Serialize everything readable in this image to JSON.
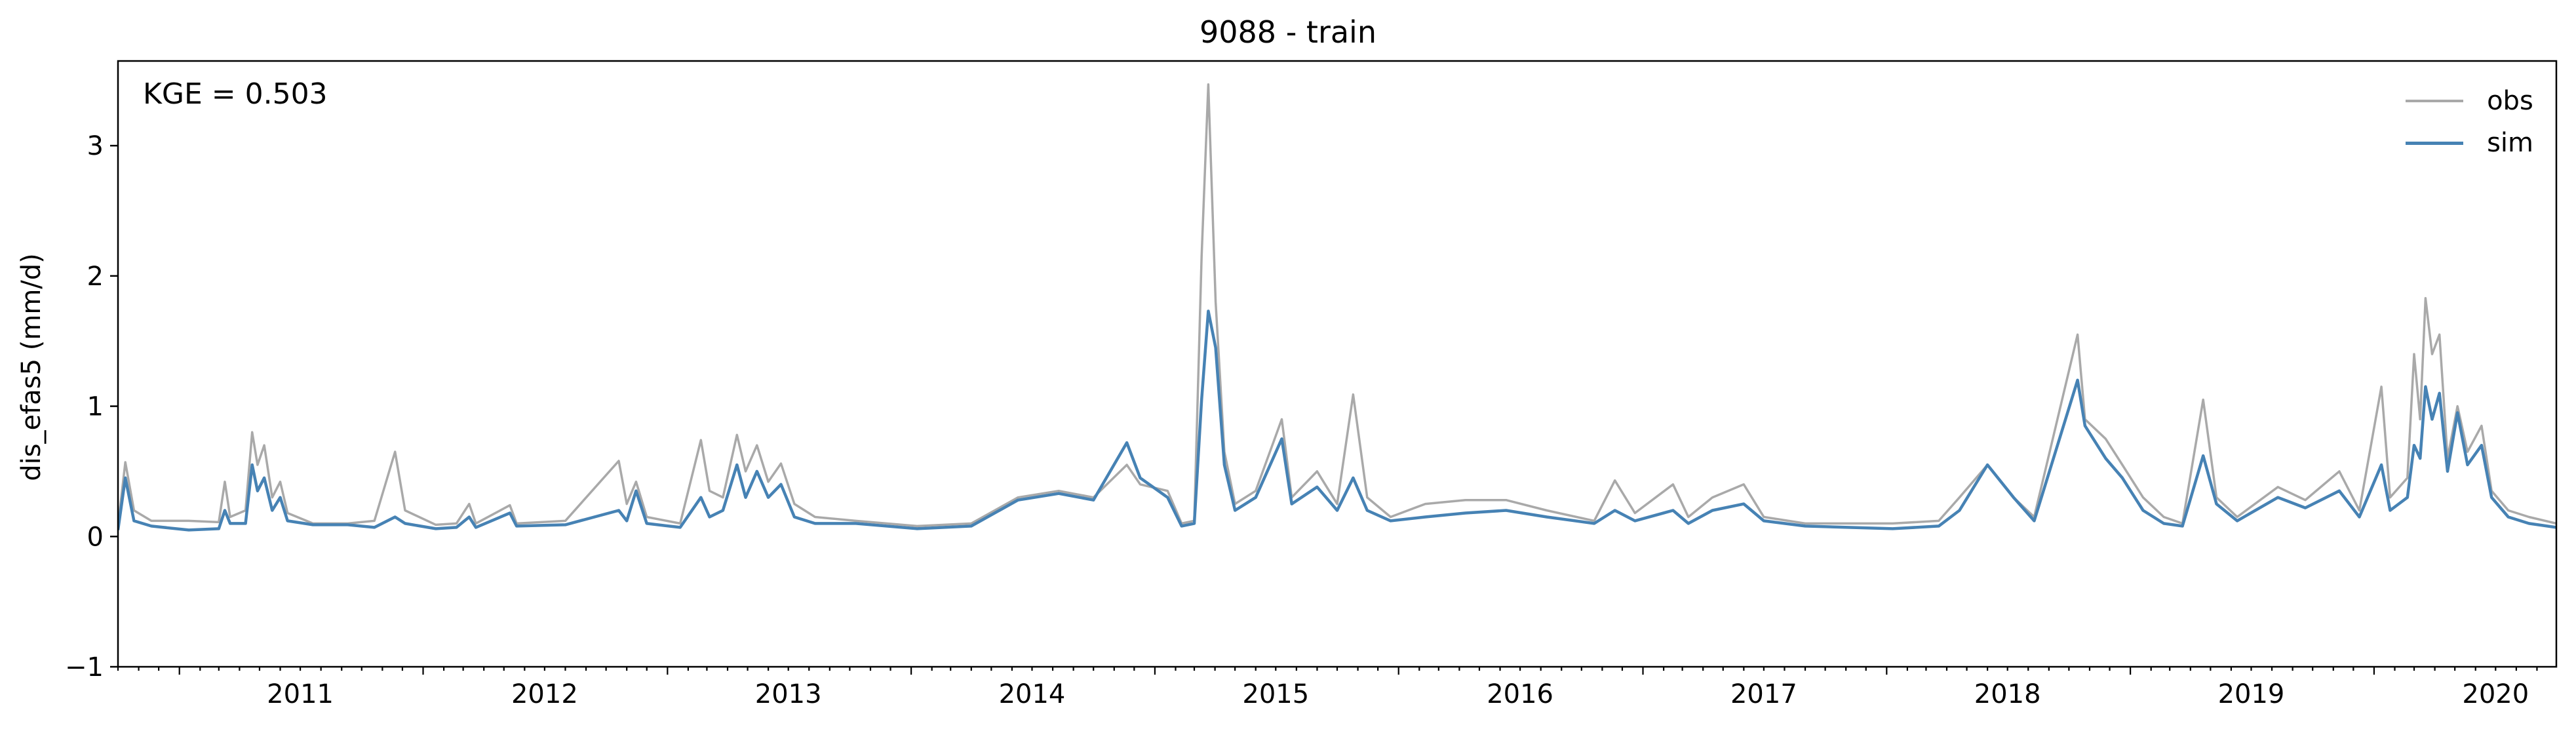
{
  "chart_data": {
    "type": "line",
    "title": "9088 - train",
    "ylabel": "dis_efas5 (mm/d)",
    "xlabel": "",
    "annotation": "KGE = 0.503",
    "x_range": [
      "2010-10-01",
      "2020-09-30"
    ],
    "ylim": [
      -1,
      3.65
    ],
    "yticks": [
      -1,
      0,
      1,
      2,
      3
    ],
    "xticks": [
      "2011",
      "2012",
      "2013",
      "2014",
      "2015",
      "2016",
      "2017",
      "2018",
      "2019",
      "2020"
    ],
    "grid": false,
    "legend_position": "top-right",
    "series": [
      {
        "name": "obs",
        "color": "#a9a9a9",
        "points": [
          [
            "2010-10-01",
            0.08
          ],
          [
            "2010-10-12",
            0.57
          ],
          [
            "2010-10-25",
            0.2
          ],
          [
            "2010-11-20",
            0.12
          ],
          [
            "2011-01-15",
            0.12
          ],
          [
            "2011-03-01",
            0.11
          ],
          [
            "2011-03-10",
            0.42
          ],
          [
            "2011-03-18",
            0.15
          ],
          [
            "2011-04-10",
            0.2
          ],
          [
            "2011-04-20",
            0.8
          ],
          [
            "2011-04-28",
            0.55
          ],
          [
            "2011-05-08",
            0.7
          ],
          [
            "2011-05-20",
            0.3
          ],
          [
            "2011-06-01",
            0.42
          ],
          [
            "2011-06-12",
            0.18
          ],
          [
            "2011-07-20",
            0.1
          ],
          [
            "2011-09-10",
            0.1
          ],
          [
            "2011-10-20",
            0.12
          ],
          [
            "2011-11-20",
            0.65
          ],
          [
            "2011-12-05",
            0.2
          ],
          [
            "2012-01-20",
            0.09
          ],
          [
            "2012-02-20",
            0.1
          ],
          [
            "2012-03-10",
            0.25
          ],
          [
            "2012-03-20",
            0.1
          ],
          [
            "2012-05-10",
            0.24
          ],
          [
            "2012-05-20",
            0.1
          ],
          [
            "2012-08-01",
            0.12
          ],
          [
            "2012-10-20",
            0.58
          ],
          [
            "2012-11-01",
            0.25
          ],
          [
            "2012-11-15",
            0.42
          ],
          [
            "2012-12-01",
            0.15
          ],
          [
            "2013-01-20",
            0.1
          ],
          [
            "2013-02-20",
            0.74
          ],
          [
            "2013-03-05",
            0.35
          ],
          [
            "2013-03-25",
            0.3
          ],
          [
            "2013-04-15",
            0.78
          ],
          [
            "2013-04-28",
            0.5
          ],
          [
            "2013-05-15",
            0.7
          ],
          [
            "2013-06-01",
            0.42
          ],
          [
            "2013-06-20",
            0.56
          ],
          [
            "2013-07-10",
            0.25
          ],
          [
            "2013-08-10",
            0.15
          ],
          [
            "2013-10-10",
            0.12
          ],
          [
            "2014-01-10",
            0.08
          ],
          [
            "2014-04-01",
            0.1
          ],
          [
            "2014-06-10",
            0.3
          ],
          [
            "2014-08-10",
            0.35
          ],
          [
            "2014-10-01",
            0.3
          ],
          [
            "2014-11-20",
            0.55
          ],
          [
            "2014-12-10",
            0.4
          ],
          [
            "2015-01-20",
            0.35
          ],
          [
            "2015-02-10",
            0.1
          ],
          [
            "2015-03-01",
            0.12
          ],
          [
            "2015-03-12",
            2.15
          ],
          [
            "2015-03-22",
            3.47
          ],
          [
            "2015-04-02",
            1.8
          ],
          [
            "2015-04-15",
            0.65
          ],
          [
            "2015-05-01",
            0.25
          ],
          [
            "2015-06-01",
            0.35
          ],
          [
            "2015-07-10",
            0.9
          ],
          [
            "2015-07-25",
            0.3
          ],
          [
            "2015-09-01",
            0.5
          ],
          [
            "2015-10-01",
            0.25
          ],
          [
            "2015-10-25",
            1.09
          ],
          [
            "2015-11-15",
            0.3
          ],
          [
            "2015-12-20",
            0.15
          ],
          [
            "2016-02-10",
            0.25
          ],
          [
            "2016-04-10",
            0.28
          ],
          [
            "2016-06-10",
            0.28
          ],
          [
            "2016-08-10",
            0.2
          ],
          [
            "2016-10-20",
            0.12
          ],
          [
            "2016-11-20",
            0.43
          ],
          [
            "2016-12-20",
            0.18
          ],
          [
            "2017-02-15",
            0.4
          ],
          [
            "2017-03-10",
            0.15
          ],
          [
            "2017-04-15",
            0.3
          ],
          [
            "2017-06-01",
            0.4
          ],
          [
            "2017-07-01",
            0.15
          ],
          [
            "2017-09-01",
            0.1
          ],
          [
            "2018-01-10",
            0.1
          ],
          [
            "2018-03-20",
            0.12
          ],
          [
            "2018-04-20",
            0.3
          ],
          [
            "2018-06-01",
            0.55
          ],
          [
            "2018-07-10",
            0.3
          ],
          [
            "2018-08-10",
            0.15
          ],
          [
            "2018-10-14",
            1.55
          ],
          [
            "2018-10-25",
            0.9
          ],
          [
            "2018-11-25",
            0.75
          ],
          [
            "2018-12-20",
            0.55
          ],
          [
            "2019-01-20",
            0.3
          ],
          [
            "2019-02-20",
            0.15
          ],
          [
            "2019-03-20",
            0.1
          ],
          [
            "2019-04-20",
            1.05
          ],
          [
            "2019-05-10",
            0.3
          ],
          [
            "2019-06-10",
            0.15
          ],
          [
            "2019-08-10",
            0.38
          ],
          [
            "2019-09-20",
            0.28
          ],
          [
            "2019-11-10",
            0.5
          ],
          [
            "2019-12-10",
            0.2
          ],
          [
            "2020-01-12",
            1.15
          ],
          [
            "2020-01-25",
            0.3
          ],
          [
            "2020-02-20",
            0.45
          ],
          [
            "2020-03-01",
            1.4
          ],
          [
            "2020-03-10",
            0.9
          ],
          [
            "2020-03-18",
            1.83
          ],
          [
            "2020-03-28",
            1.4
          ],
          [
            "2020-04-08",
            1.55
          ],
          [
            "2020-04-20",
            0.6
          ],
          [
            "2020-05-05",
            1.0
          ],
          [
            "2020-05-20",
            0.65
          ],
          [
            "2020-06-10",
            0.85
          ],
          [
            "2020-06-25",
            0.35
          ],
          [
            "2020-07-20",
            0.2
          ],
          [
            "2020-08-20",
            0.15
          ],
          [
            "2020-09-30",
            0.1
          ]
        ]
      },
      {
        "name": "sim",
        "color": "#4682b4",
        "points": [
          [
            "2010-10-01",
            0.05
          ],
          [
            "2010-10-12",
            0.45
          ],
          [
            "2010-10-25",
            0.12
          ],
          [
            "2010-11-20",
            0.08
          ],
          [
            "2011-01-15",
            0.05
          ],
          [
            "2011-03-01",
            0.06
          ],
          [
            "2011-03-10",
            0.2
          ],
          [
            "2011-03-18",
            0.1
          ],
          [
            "2011-04-10",
            0.1
          ],
          [
            "2011-04-20",
            0.55
          ],
          [
            "2011-04-28",
            0.35
          ],
          [
            "2011-05-08",
            0.45
          ],
          [
            "2011-05-20",
            0.2
          ],
          [
            "2011-06-01",
            0.3
          ],
          [
            "2011-06-12",
            0.12
          ],
          [
            "2011-07-20",
            0.09
          ],
          [
            "2011-09-10",
            0.09
          ],
          [
            "2011-10-20",
            0.07
          ],
          [
            "2011-11-20",
            0.15
          ],
          [
            "2011-12-05",
            0.1
          ],
          [
            "2012-01-20",
            0.06
          ],
          [
            "2012-02-20",
            0.07
          ],
          [
            "2012-03-10",
            0.15
          ],
          [
            "2012-03-20",
            0.07
          ],
          [
            "2012-05-10",
            0.18
          ],
          [
            "2012-05-20",
            0.08
          ],
          [
            "2012-08-01",
            0.09
          ],
          [
            "2012-10-20",
            0.2
          ],
          [
            "2012-11-01",
            0.12
          ],
          [
            "2012-11-15",
            0.35
          ],
          [
            "2012-12-01",
            0.1
          ],
          [
            "2013-01-20",
            0.07
          ],
          [
            "2013-02-20",
            0.3
          ],
          [
            "2013-03-05",
            0.15
          ],
          [
            "2013-03-25",
            0.2
          ],
          [
            "2013-04-15",
            0.55
          ],
          [
            "2013-04-28",
            0.3
          ],
          [
            "2013-05-15",
            0.5
          ],
          [
            "2013-06-01",
            0.3
          ],
          [
            "2013-06-20",
            0.4
          ],
          [
            "2013-07-10",
            0.15
          ],
          [
            "2013-08-10",
            0.1
          ],
          [
            "2013-10-10",
            0.1
          ],
          [
            "2014-01-10",
            0.06
          ],
          [
            "2014-04-01",
            0.08
          ],
          [
            "2014-06-10",
            0.28
          ],
          [
            "2014-08-10",
            0.33
          ],
          [
            "2014-10-01",
            0.28
          ],
          [
            "2014-11-20",
            0.72
          ],
          [
            "2014-12-10",
            0.45
          ],
          [
            "2015-01-20",
            0.3
          ],
          [
            "2015-02-10",
            0.08
          ],
          [
            "2015-03-01",
            0.1
          ],
          [
            "2015-03-12",
            1.05
          ],
          [
            "2015-03-22",
            1.73
          ],
          [
            "2015-04-02",
            1.45
          ],
          [
            "2015-04-15",
            0.55
          ],
          [
            "2015-05-01",
            0.2
          ],
          [
            "2015-06-01",
            0.3
          ],
          [
            "2015-07-10",
            0.75
          ],
          [
            "2015-07-25",
            0.25
          ],
          [
            "2015-09-01",
            0.38
          ],
          [
            "2015-10-01",
            0.2
          ],
          [
            "2015-10-25",
            0.45
          ],
          [
            "2015-11-15",
            0.2
          ],
          [
            "2015-12-20",
            0.12
          ],
          [
            "2016-02-10",
            0.15
          ],
          [
            "2016-04-10",
            0.18
          ],
          [
            "2016-06-10",
            0.2
          ],
          [
            "2016-08-10",
            0.15
          ],
          [
            "2016-10-20",
            0.1
          ],
          [
            "2016-11-20",
            0.2
          ],
          [
            "2016-12-20",
            0.12
          ],
          [
            "2017-02-15",
            0.2
          ],
          [
            "2017-03-10",
            0.1
          ],
          [
            "2017-04-15",
            0.2
          ],
          [
            "2017-06-01",
            0.25
          ],
          [
            "2017-07-01",
            0.12
          ],
          [
            "2017-09-01",
            0.08
          ],
          [
            "2018-01-10",
            0.06
          ],
          [
            "2018-03-20",
            0.08
          ],
          [
            "2018-04-20",
            0.2
          ],
          [
            "2018-06-01",
            0.55
          ],
          [
            "2018-07-10",
            0.3
          ],
          [
            "2018-08-10",
            0.12
          ],
          [
            "2018-10-14",
            1.2
          ],
          [
            "2018-10-25",
            0.85
          ],
          [
            "2018-11-25",
            0.6
          ],
          [
            "2018-12-20",
            0.45
          ],
          [
            "2019-01-20",
            0.2
          ],
          [
            "2019-02-20",
            0.1
          ],
          [
            "2019-03-20",
            0.08
          ],
          [
            "2019-04-20",
            0.62
          ],
          [
            "2019-05-10",
            0.25
          ],
          [
            "2019-06-10",
            0.12
          ],
          [
            "2019-08-10",
            0.3
          ],
          [
            "2019-09-20",
            0.22
          ],
          [
            "2019-11-10",
            0.35
          ],
          [
            "2019-12-10",
            0.15
          ],
          [
            "2020-01-12",
            0.55
          ],
          [
            "2020-01-25",
            0.2
          ],
          [
            "2020-02-20",
            0.3
          ],
          [
            "2020-03-01",
            0.7
          ],
          [
            "2020-03-10",
            0.6
          ],
          [
            "2020-03-18",
            1.15
          ],
          [
            "2020-03-28",
            0.9
          ],
          [
            "2020-04-08",
            1.1
          ],
          [
            "2020-04-20",
            0.5
          ],
          [
            "2020-05-05",
            0.95
          ],
          [
            "2020-05-20",
            0.55
          ],
          [
            "2020-06-10",
            0.7
          ],
          [
            "2020-06-25",
            0.3
          ],
          [
            "2020-07-20",
            0.15
          ],
          [
            "2020-08-20",
            0.1
          ],
          [
            "2020-09-30",
            0.07
          ]
        ]
      }
    ]
  }
}
